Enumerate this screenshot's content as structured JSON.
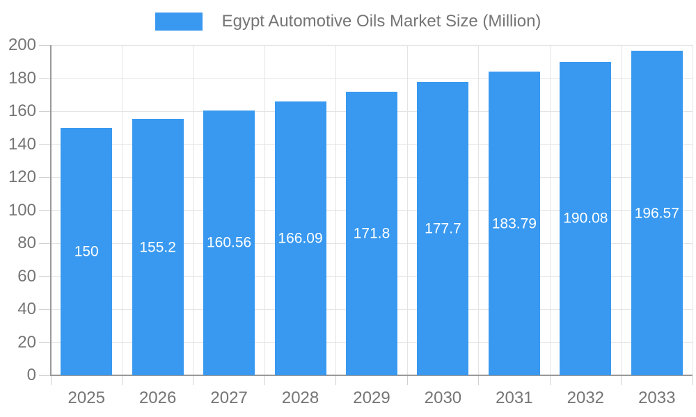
{
  "chart_data": {
    "type": "bar",
    "title": "Egypt Automotive Oils Market Size (Million)",
    "categories": [
      "2025",
      "2026",
      "2027",
      "2028",
      "2029",
      "2030",
      "2031",
      "2032",
      "2033"
    ],
    "values": [
      150,
      155.2,
      160.56,
      166.09,
      171.8,
      177.7,
      183.79,
      190.08,
      196.57
    ],
    "value_labels": [
      "150",
      "155.2",
      "160.56",
      "166.09",
      "171.8",
      "177.7",
      "183.79",
      "190.08",
      "196.57"
    ],
    "xlabel": "",
    "ylabel": "",
    "ylim": [
      0,
      200
    ],
    "yticks": [
      0,
      20,
      40,
      60,
      80,
      100,
      120,
      140,
      160,
      180,
      200
    ],
    "grid": true,
    "legend_position": "top-center",
    "value_label_position": "inside-center",
    "colors": {
      "bar": "#3999F0",
      "bar_label": "#FFFFFF",
      "axis_text": "#757575",
      "legend_text": "#757575",
      "grid_line": "#E4E4E4",
      "axis_line": "#999999",
      "tick_line": "#D0D0D0",
      "background": "#FFFFFF"
    }
  }
}
